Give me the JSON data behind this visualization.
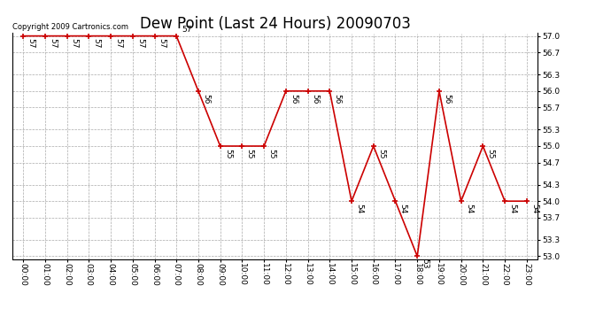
{
  "title": "Dew Point (Last 24 Hours) 20090703",
  "copyright_text": "Copyright 2009 Cartronics.com",
  "hours": [
    "00:00",
    "01:00",
    "02:00",
    "03:00",
    "04:00",
    "05:00",
    "06:00",
    "07:00",
    "08:00",
    "09:00",
    "10:00",
    "11:00",
    "12:00",
    "13:00",
    "14:00",
    "15:00",
    "16:00",
    "17:00",
    "18:00",
    "19:00",
    "20:00",
    "21:00",
    "22:00",
    "23:00"
  ],
  "values": [
    57,
    57,
    57,
    57,
    57,
    57,
    57,
    57,
    56,
    55,
    55,
    55,
    56,
    56,
    56,
    54,
    55,
    54,
    53,
    56,
    54,
    55,
    54,
    54
  ],
  "line_color": "#cc0000",
  "marker_color": "#cc0000",
  "background_color": "#ffffff",
  "grid_color": "#aaaaaa",
  "ylim_min": 53.0,
  "ylim_max": 57.0,
  "ytick_values": [
    53.0,
    53.3,
    53.7,
    54.0,
    54.3,
    54.7,
    55.0,
    55.3,
    55.7,
    56.0,
    56.3,
    56.7,
    57.0
  ],
  "title_fontsize": 12,
  "label_fontsize": 6.5,
  "tick_fontsize": 6.5,
  "copyright_fontsize": 6
}
